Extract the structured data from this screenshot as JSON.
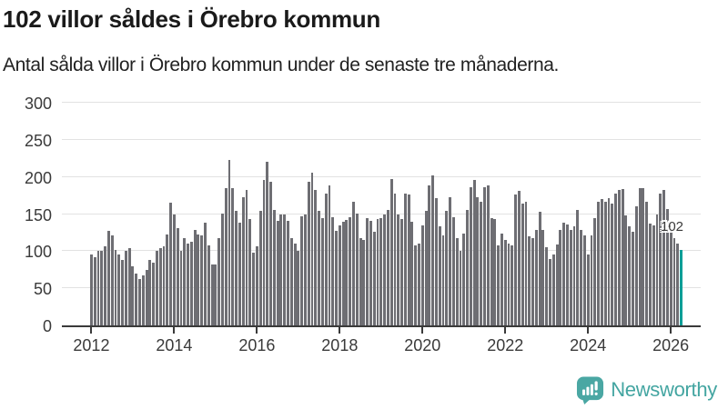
{
  "header": {
    "title": "102 villor såldes i Örebro kommun",
    "subtitle": "Antal sålda villor i Örebro kommun under de senaste tre månaderna."
  },
  "chart_data": {
    "type": "bar",
    "title": "102 villor såldes i Örebro kommun",
    "subtitle": "Antal sålda villor i Örebro kommun under de senaste tre månaderna.",
    "xlabel": "",
    "ylabel": "",
    "ylim": [
      0,
      300
    ],
    "y_ticks": [
      0,
      50,
      100,
      150,
      200,
      250,
      300
    ],
    "x_tick_labels": [
      "2012",
      "2014",
      "2016",
      "2018",
      "2020",
      "2022",
      "2024",
      "2026"
    ],
    "frequency": "monthly",
    "x_start": "2012-01",
    "grid": "horizontal",
    "legend": "none",
    "bar_color": "#6e6e73",
    "highlight_color": "#089e97",
    "last_label": "102",
    "last_value": 102,
    "values": [
      96,
      92,
      100,
      101,
      106,
      127,
      121,
      102,
      96,
      88,
      100,
      104,
      80,
      70,
      62,
      67,
      75,
      88,
      85,
      100,
      104,
      107,
      122,
      165,
      150,
      131,
      100,
      118,
      110,
      113,
      129,
      123,
      121,
      138,
      108,
      82,
      82,
      117,
      151,
      185,
      223,
      185,
      154,
      138,
      173,
      182,
      143,
      98,
      106,
      154,
      196,
      220,
      194,
      156,
      141,
      150,
      150,
      141,
      117,
      110,
      101,
      147,
      149,
      194,
      206,
      182,
      154,
      145,
      178,
      188,
      146,
      127,
      135,
      139,
      142,
      146,
      166,
      151,
      118,
      115,
      145,
      141,
      126,
      143,
      145,
      150,
      155,
      197,
      178,
      150,
      143,
      178,
      176,
      140,
      108,
      110,
      135,
      154,
      188,
      202,
      172,
      133,
      121,
      154,
      173,
      146,
      118,
      100,
      124,
      156,
      186,
      196,
      173,
      166,
      186,
      188,
      145,
      143,
      108,
      124,
      115,
      110,
      108,
      176,
      181,
      164,
      166,
      120,
      117,
      128,
      153,
      128,
      105,
      90,
      96,
      109,
      128,
      138,
      136,
      129,
      133,
      155,
      128,
      121,
      96,
      121,
      145,
      166,
      170,
      167,
      171,
      164,
      177,
      182,
      184,
      148,
      133,
      126,
      161,
      185,
      185,
      166,
      137,
      135,
      149,
      177,
      182,
      157,
      139,
      117,
      110,
      102
    ]
  },
  "footer": {
    "brand": "Newsworthy"
  }
}
